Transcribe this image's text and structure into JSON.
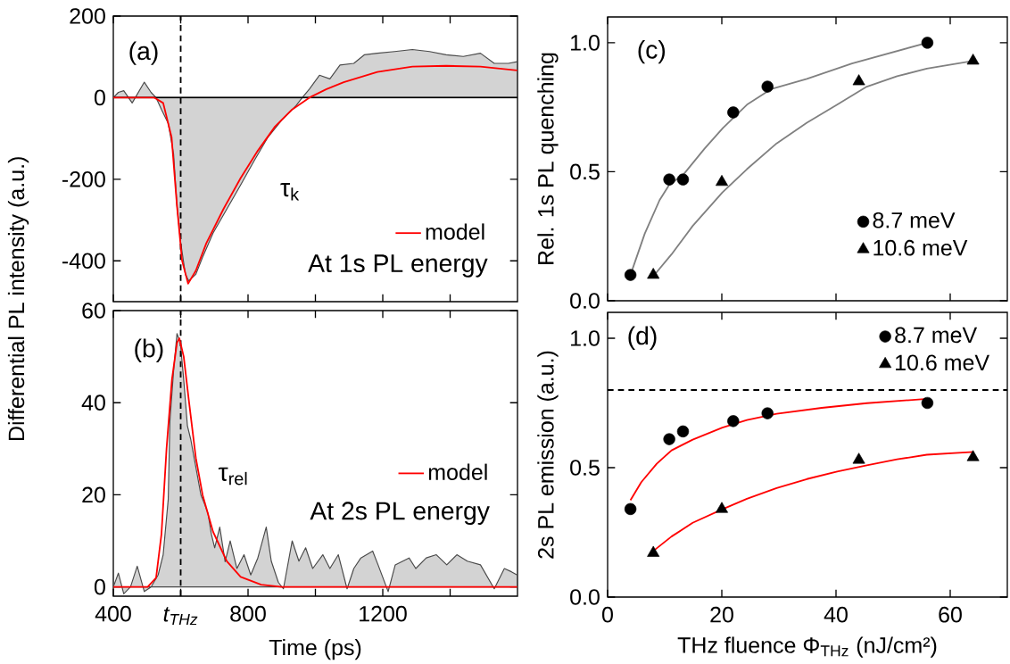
{
  "chart_data": [
    {
      "type": "line",
      "ylabel": "Differential PL intensity (a.u.)",
      "annotations": [
        "(a)",
        "τ$_{k}$",
        "At 1s PL energy"
      ],
      "xlim": [
        400,
        1600
      ],
      "ylim": [
        -500,
        200
      ],
      "xticks": [
        400,
        {
          "value": 600,
          "label": null
        },
        800,
        {
          "value": 1000,
          "label": null
        },
        1200,
        {
          "value": 1400,
          "label": null
        }
      ],
      "yticks": [
        -400,
        -200,
        0,
        200
      ],
      "tick_labels": "y",
      "legend": "bottom right",
      "ref_lines": [
        {
          "axis": "y",
          "value": 0,
          "color": "#000000",
          "line_style": "solid"
        },
        {
          "axis": "x",
          "value": 600,
          "color": "#000000",
          "line_style": "dashed"
        }
      ],
      "series": [
        {
          "type": "area",
          "color": "#d3d3d3",
          "x": [
            400,
            415,
            431,
            456,
            492,
            512,
            527,
            543,
            563,
            579,
            589,
            599,
            614,
            624,
            645,
            665,
            696,
            737,
            778,
            818,
            859,
            900,
            941,
            961,
            982,
            1012,
            1043,
            1073,
            1114,
            1145,
            1184,
            1235,
            1288,
            1339,
            1388,
            1439,
            1490,
            1531,
            1573,
            1599
          ],
          "values": [
            0,
            13,
            17,
            -13,
            38,
            13,
            0,
            -29,
            -63,
            -139,
            -265,
            -349,
            -433,
            -449,
            -433,
            -391,
            -332,
            -273,
            -214,
            -155,
            -97,
            -55,
            -21,
            0,
            21,
            55,
            46,
            80,
            84,
            105,
            109,
            113,
            118,
            113,
            105,
            101,
            109,
            84,
            84,
            88
          ]
        },
        {
          "type": "line",
          "name": "model",
          "color": "#ff0000",
          "x": [
            400,
            522,
            548,
            573,
            589,
            604,
            622,
            645,
            676,
            727,
            778,
            829,
            880,
            931,
            982,
            1033,
            1084,
            1184,
            1288,
            1388,
            1490,
            1599
          ],
          "values": [
            0,
            0,
            -13,
            -97,
            -265,
            -399,
            -456,
            -424,
            -357,
            -273,
            -197,
            -130,
            -71,
            -29,
            0,
            21,
            38,
            63,
            76,
            78,
            76,
            67
          ]
        }
      ]
    },
    {
      "type": "line",
      "xlabel": "Time (ps)",
      "annotations": [
        "(b)",
        "τ$_{rel}$",
        "At 2s PL energy"
      ],
      "xlim": [
        400,
        1600
      ],
      "ylim": [
        -2,
        60
      ],
      "xticks": [
        400,
        {
          "value": 600,
          "label": "t$_{THz}$"
        },
        800,
        {
          "value": 1000,
          "label": null
        },
        1200,
        {
          "value": 1400,
          "label": null
        }
      ],
      "yticks": [
        0,
        20,
        40,
        60
      ],
      "legend": "right",
      "ref_lines": [
        {
          "axis": "x",
          "value": 600,
          "color": "#000000",
          "line_style": "dashed"
        }
      ],
      "series": [
        {
          "type": "area",
          "color": "#d3d3d3",
          "x": [
            400,
            415,
            431,
            451,
            471,
            492,
            512,
            533,
            548,
            563,
            568,
            579,
            589,
            599,
            609,
            620,
            630,
            645,
            660,
            671,
            681,
            691,
            701,
            716,
            732,
            747,
            767,
            788,
            808,
            829,
            854,
            869,
            890,
            905,
            931,
            951,
            971,
            992,
            1022,
            1043,
            1068,
            1094,
            1114,
            1135,
            1170,
            1186,
            1216,
            1237,
            1278,
            1298,
            1329,
            1359,
            1390,
            1420,
            1451,
            1490,
            1531,
            1561,
            1582,
            1599
          ],
          "values": [
            0,
            3,
            -1.5,
            0,
            4.5,
            -1,
            0,
            2.6,
            7,
            19,
            36,
            47,
            55,
            53,
            45,
            35,
            32,
            26,
            20,
            18,
            16,
            11.5,
            8.5,
            13,
            5.5,
            10,
            4,
            7,
            2.6,
            6.3,
            13,
            5.6,
            1,
            -0.4,
            10,
            5.6,
            8.5,
            4,
            7,
            4,
            7,
            -0.4,
            4,
            6.3,
            7.8,
            4.8,
            -1,
            4.8,
            6.3,
            4,
            6.3,
            7,
            4.8,
            7,
            5.6,
            4.8,
            -0.4,
            4,
            3.3,
            2.6
          ]
        },
        {
          "type": "line",
          "name": "model",
          "color": "#ff0000",
          "x": [
            400,
            502,
            527,
            543,
            558,
            574,
            589,
            596,
            609,
            625,
            645,
            665,
            696,
            737,
            778,
            839,
            900,
            1599
          ],
          "values": [
            0,
            0,
            2,
            11.5,
            30,
            45,
            53,
            54,
            50,
            40,
            28,
            20,
            12,
            5.6,
            2.2,
            0.5,
            0,
            0
          ]
        }
      ]
    },
    {
      "type": "scatter",
      "ylabel": "Rel. 1s PL quenching",
      "annotations": [
        "(c)"
      ],
      "xlim": [
        0,
        70
      ],
      "ylim": [
        0,
        1.1
      ],
      "xticks": [
        0,
        20,
        40,
        60
      ],
      "yticks": [
        {
          "value": 0,
          "label": "0.0"
        },
        {
          "value": 0.5,
          "label": "0.5"
        },
        {
          "value": 1,
          "label": "1.0"
        }
      ],
      "tick_labels": "y",
      "legend": "bottom right",
      "series": [
        {
          "name": "8.7 meV",
          "marker": "circle",
          "color": "#000000",
          "x": [
            4,
            10.8,
            13.2,
            22,
            28,
            56
          ],
          "values": [
            0.1,
            0.47,
            0.47,
            0.73,
            0.83,
            1.0
          ]
        },
        {
          "name": "10.6 meV",
          "marker": "triangle",
          "color": "#000000",
          "x": [
            8,
            20,
            44,
            64
          ],
          "values": [
            0.1,
            0.46,
            0.85,
            0.93
          ]
        },
        {
          "type": "line",
          "color": "#808080",
          "x": [
            4,
            6.5,
            9.1,
            10.8,
            13.3,
            17,
            20.2,
            24.4,
            28.6,
            34.9,
            42.8,
            56
          ],
          "values": [
            0.1,
            0.26,
            0.39,
            0.45,
            0.49,
            0.59,
            0.67,
            0.76,
            0.82,
            0.86,
            0.92,
            1.0
          ]
        },
        {
          "type": "line",
          "color": "#808080",
          "x": [
            8,
            11.2,
            14.9,
            20.1,
            24.4,
            29.6,
            34.9,
            40.2,
            45.4,
            50.7,
            55.9,
            64.1
          ],
          "values": [
            0.095,
            0.18,
            0.29,
            0.42,
            0.51,
            0.61,
            0.69,
            0.76,
            0.83,
            0.87,
            0.9,
            0.93
          ]
        }
      ]
    },
    {
      "type": "scatter",
      "xlabel": "THz fluence Φ$_{THz}$ (nJ/cm²)",
      "ylabel": "2s PL emission (a.u.)",
      "annotations": [
        "(d)"
      ],
      "xlim": [
        0,
        70
      ],
      "ylim": [
        0,
        1.1
      ],
      "xticks": [
        0,
        20,
        40,
        60
      ],
      "yticks": [
        {
          "value": 0,
          "label": "0.0"
        },
        {
          "value": 0.5,
          "label": "0.5"
        },
        {
          "value": 1,
          "label": "1.0"
        }
      ],
      "legend": "top right",
      "ref_lines": [
        {
          "axis": "y",
          "value": 0.8,
          "color": "#000000",
          "line_style": "dashed"
        }
      ],
      "series": [
        {
          "name": "8.7 meV",
          "marker": "circle",
          "color": "#000000",
          "x": [
            4,
            10.8,
            13.2,
            22,
            28,
            56
          ],
          "values": [
            0.34,
            0.61,
            0.64,
            0.68,
            0.71,
            0.75
          ]
        },
        {
          "name": "10.6 meV",
          "marker": "triangle",
          "color": "#000000",
          "x": [
            8,
            20,
            44,
            64
          ],
          "values": [
            0.17,
            0.34,
            0.53,
            0.54
          ]
        },
        {
          "type": "line",
          "color": "#ff0000",
          "x": [
            4,
            5.9,
            8.6,
            11.2,
            14.9,
            20.1,
            24.4,
            29.6,
            37.5,
            45.4,
            56
          ],
          "values": [
            0.374,
            0.444,
            0.515,
            0.567,
            0.608,
            0.655,
            0.684,
            0.708,
            0.731,
            0.749,
            0.766
          ]
        },
        {
          "type": "line",
          "color": "#ff0000",
          "x": [
            8,
            11.2,
            14.9,
            20.1,
            24.4,
            29.6,
            34.9,
            40.2,
            45.4,
            50.7,
            55.9,
            64.1
          ],
          "values": [
            0.178,
            0.234,
            0.287,
            0.339,
            0.38,
            0.421,
            0.456,
            0.485,
            0.509,
            0.532,
            0.55,
            0.561
          ]
        }
      ]
    }
  ]
}
